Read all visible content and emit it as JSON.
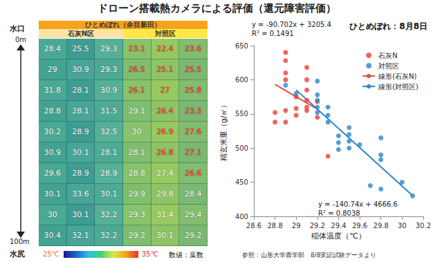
{
  "title": "ドローン搭載熱カメラによる評価（還元障害評価）",
  "thermal_map": {
    "header": "ひとめぼれ（余目新田）",
    "groups": [
      "石灰N区",
      "対照区"
    ],
    "top_label": "水口",
    "bottom_label": "水尻",
    "start_label": "0m",
    "end_label": "100m",
    "rows": [
      [
        28.4,
        25.5,
        29.3,
        23.1,
        22.4,
        23.6
      ],
      [
        29,
        30.9,
        29.3,
        26.5,
        25.1,
        25.5
      ],
      [
        31.8,
        28.1,
        30.9,
        26.1,
        27,
        25.8
      ],
      [
        28.8,
        28.1,
        31.5,
        29.1,
        26.4,
        23.3
      ],
      [
        30.2,
        28.9,
        32.5,
        30,
        26.9,
        27.6
      ],
      [
        30.9,
        30.1,
        28.1,
        28.1,
        26.8,
        27.1
      ],
      [
        29.6,
        28.9,
        28.9,
        28.8,
        27.4,
        26.6
      ],
      [
        30.1,
        33.6,
        30.1,
        29.9,
        29.8,
        28.4
      ],
      [
        30,
        30.1,
        32.2,
        29.3,
        31.4,
        29.4
      ],
      [
        30.4,
        32.1,
        32.2,
        29.2,
        30.1,
        29.2
      ]
    ],
    "number_colors": [
      [
        "white",
        "white",
        "white",
        "red",
        "red",
        "red"
      ],
      [
        "white",
        "white",
        "white",
        "red",
        "red",
        "red"
      ],
      [
        "white",
        "white",
        "white",
        "red",
        "red",
        "red"
      ],
      [
        "white",
        "white",
        "white",
        "white",
        "red",
        "red"
      ],
      [
        "white",
        "white",
        "white",
        "white",
        "red",
        "red"
      ],
      [
        "white",
        "white",
        "white",
        "white",
        "red",
        "red"
      ],
      [
        "white",
        "white",
        "white",
        "white",
        "white",
        "red"
      ],
      [
        "white",
        "white",
        "white",
        "white",
        "white",
        "white"
      ],
      [
        "white",
        "white",
        "white",
        "white",
        "white",
        "white"
      ],
      [
        "white",
        "white",
        "white",
        "white",
        "white",
        "white"
      ]
    ],
    "scale_min_label": "25℃",
    "scale_max_label": "35℃",
    "note": "数値：葉数"
  },
  "chart_data": {
    "type": "scatter",
    "title": "ひとめぼれ：8月8日",
    "x_label": "稲体温度（℃）",
    "y_label": "精玄米重（g/㎡）",
    "xlim": [
      28.6,
      30.2
    ],
    "xticks": [
      28.6,
      28.8,
      29,
      29.2,
      29.4,
      29.6,
      29.8,
      30,
      30.2
    ],
    "ylim": [
      400,
      650
    ],
    "yticks": [
      400,
      450,
      500,
      550,
      600,
      650
    ],
    "grid": false,
    "legend": "upper right",
    "source": "参照：山形大学農学部　8/8実証試験データより",
    "series": [
      {
        "name": "石灰N",
        "type": "scatter",
        "marker": "circle",
        "color": "#e8403a",
        "x": [
          28.8,
          28.8,
          28.9,
          28.9,
          28.9,
          28.9,
          28.9,
          28.9,
          29,
          29,
          29,
          29.1,
          29.1,
          29.1,
          29.1,
          29.1,
          29.1,
          29.2,
          29.2,
          29.3
        ],
        "values": [
          552,
          538,
          640,
          628,
          610,
          600,
          555,
          538,
          575,
          558,
          548,
          618,
          600,
          585,
          570,
          560,
          555,
          568,
          545,
          488
        ]
      },
      {
        "name": "対照区",
        "type": "scatter",
        "marker": "circle",
        "color": "#2e86c9",
        "x": [
          28.9,
          29,
          29.2,
          29.2,
          29.2,
          29.2,
          29.2,
          29.3,
          29.3,
          29.3,
          29.4,
          29.4,
          29.4,
          29.5,
          29.5,
          29.5,
          29.5,
          29.6,
          29.7,
          29.8,
          29.8,
          29.8,
          29.8,
          30,
          30.1
        ],
        "values": [
          592,
          580,
          598,
          578,
          570,
          560,
          552,
          560,
          548,
          538,
          518,
          508,
          498,
          530,
          520,
          510,
          500,
          505,
          445,
          515,
          490,
          483,
          440,
          450,
          430
        ]
      },
      {
        "name": "線形(石灰N)",
        "type": "line",
        "line_style": "solid",
        "color": "#e0533b",
        "x": [
          28.8,
          29.2
        ],
        "values": [
          593.2,
          556.9
        ],
        "annotation": [
          "y = -90.702x + 3205.4",
          "R² = 0.1491"
        ]
      },
      {
        "name": "線形(対照区)",
        "type": "line",
        "line_style": "solid",
        "color": "#2e86c9",
        "x": [
          29,
          30.1
        ],
        "values": [
          585.1,
          430.3
        ],
        "annotation": [
          "y = -140.74x + 4666.6",
          "R² = 0.8038"
        ]
      }
    ]
  }
}
